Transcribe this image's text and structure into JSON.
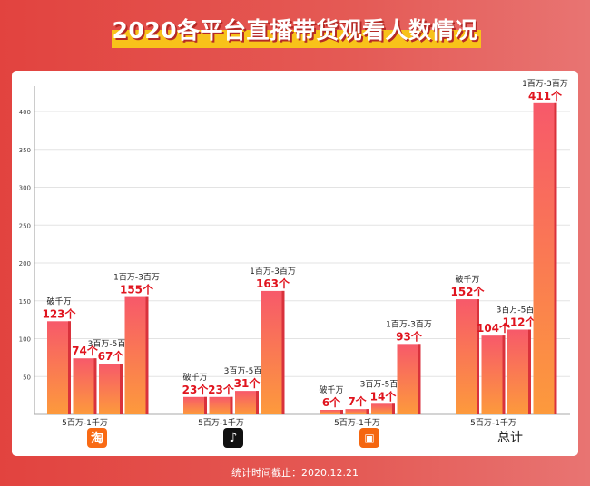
{
  "title": "2020各平台直播带货观看人数情况",
  "footer": "统计时间截止：2020.12.21",
  "chart_data": {
    "type": "bar",
    "title": "2020各平台直播带货观看人数情况",
    "categories": [
      "淘宝",
      "抖音",
      "快手",
      "总计"
    ],
    "series": [
      {
        "name": "破千万",
        "values": [
          123,
          23,
          6,
          152
        ]
      },
      {
        "name": "5百万-1千万",
        "values": [
          74,
          23,
          7,
          104
        ]
      },
      {
        "name": "3百万-5百万",
        "values": [
          67,
          31,
          14,
          112
        ]
      },
      {
        "name": "1百万-3百万",
        "values": [
          155,
          163,
          93,
          411
        ]
      }
    ],
    "value_suffix": "个",
    "yticks": [
      50,
      100,
      150,
      200,
      250,
      300,
      350,
      400
    ],
    "ylim": [
      0,
      430
    ],
    "grid": true,
    "colors": {
      "bar_top": "#f7596a",
      "bar_bottom": "#fd9a3c",
      "bar_side": "#d9323c",
      "value_label": "#e0141e"
    },
    "group_icons": [
      "taobao-icon",
      "douyin-icon",
      "kuaishou-icon",
      "总计"
    ]
  }
}
